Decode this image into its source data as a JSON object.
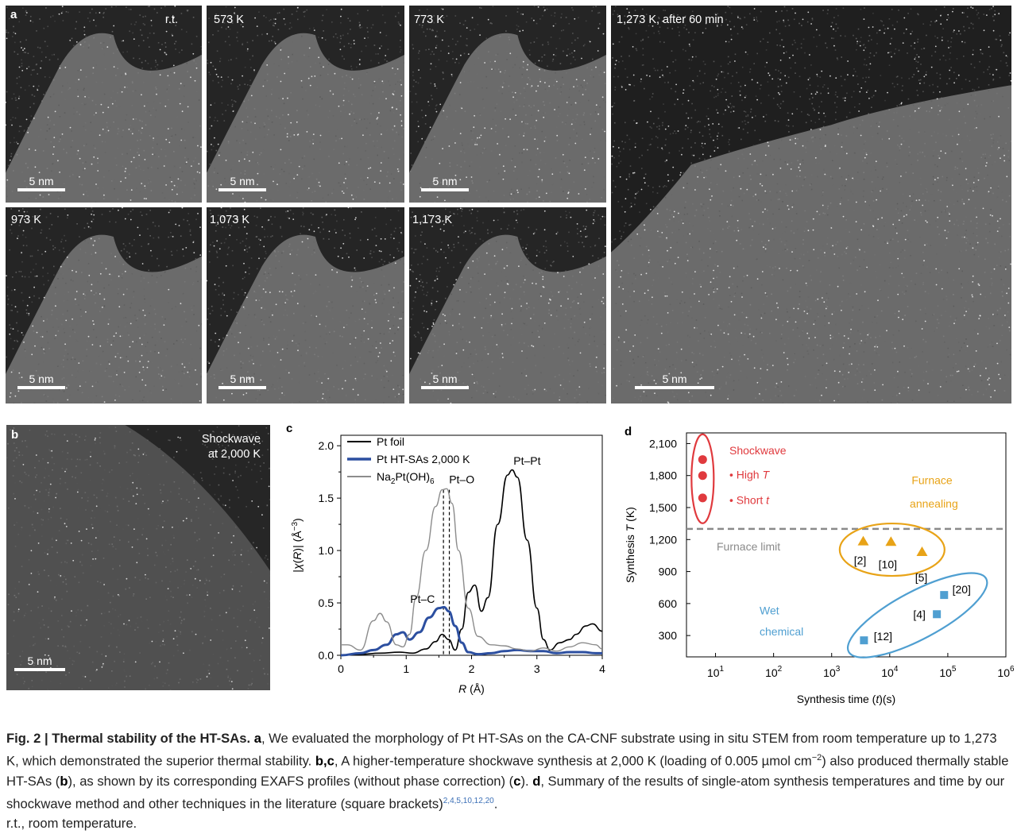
{
  "figure": {
    "panel_a": {
      "letter": "a",
      "images": [
        {
          "label": "r.t.",
          "scale": "5 nm"
        },
        {
          "label": "573 K",
          "scale": "5 nm"
        },
        {
          "label": "773 K",
          "scale": "5 nm"
        },
        {
          "label": "973 K",
          "scale": "5 nm"
        },
        {
          "label": "1,073 K",
          "scale": "5 nm"
        },
        {
          "label": "1,173 K",
          "scale": "5 nm"
        },
        {
          "label": "1,273 K, after 60 min",
          "scale": "5 nm"
        }
      ]
    },
    "panel_b": {
      "letter": "b",
      "label_line1": "Shockwave",
      "label_line2": "at 2,000 K",
      "scale": "5 nm"
    },
    "panel_c": {
      "letter": "c"
    },
    "panel_d": {
      "letter": "d"
    },
    "caption": {
      "title": "Fig. 2 | Thermal stability of the HT-SAs.",
      "a_letter": "a",
      "a_text": ", We evaluated the morphology of Pt HT-SAs on the CA-CNF substrate using in situ STEM from room temperature up to 1,273 K, which demonstrated the superior thermal stability. ",
      "bc_letter": "b,c",
      "bc_text1": ", A higher-temperature shockwave synthesis at 2,000 K (loading of 0.005 µmol cm",
      "bc_sup": "−2",
      "bc_text2": ") also produced thermally stable HT-SAs (",
      "b_ref": "b",
      "bc_text3": "), as shown by its corresponding EXAFS profiles (without phase correction) (",
      "c_ref": "c",
      "bc_text4": "). ",
      "d_letter": "d",
      "d_text": ", Summary of the results of single-atom synthesis temperatures and time by our shockwave method and other techniques in the literature (square brackets)",
      "refs": "2,4,5,10,12,20",
      "end_text": ".",
      "rt_line": "r.t., room temperature."
    }
  },
  "chart_data": [
    {
      "type": "line",
      "title": "",
      "xlabel": "R (Å)",
      "ylabel": "|χ(R)| (Å⁻³)",
      "xlim": [
        0,
        4
      ],
      "ylim": [
        0,
        2.1
      ],
      "xticks": [
        "0",
        "1",
        "2",
        "3",
        "4"
      ],
      "yticks": [
        "0.0",
        "0.5",
        "1.0",
        "1.5",
        "2.0"
      ],
      "legend": {
        "position": "top-left",
        "entries": [
          "Pt foil",
          "Pt HT-SAs 2,000 K",
          "Na2Pt(OH)6"
        ]
      },
      "annotations": [
        "Pt–O",
        "Pt–Pt",
        "Pt–C"
      ],
      "series": [
        {
          "name": "Pt foil",
          "color": "#000000",
          "x": [
            0,
            0.3,
            0.6,
            0.9,
            1.1,
            1.3,
            1.45,
            1.55,
            1.65,
            1.75,
            1.85,
            1.95,
            2.05,
            2.15,
            2.25,
            2.4,
            2.55,
            2.62,
            2.7,
            2.85,
            3.0,
            3.1,
            3.2,
            3.35,
            3.5,
            3.6,
            3.75,
            3.85,
            4.0
          ],
          "y": [
            0.0,
            0.01,
            0.02,
            0.03,
            0.02,
            0.06,
            0.13,
            0.2,
            0.15,
            0.05,
            0.25,
            0.6,
            0.67,
            0.42,
            0.55,
            1.25,
            1.72,
            1.77,
            1.7,
            1.1,
            0.45,
            0.15,
            0.05,
            0.12,
            0.15,
            0.2,
            0.28,
            0.3,
            0.23
          ]
        },
        {
          "name": "Pt HT-SAs 2,000 K",
          "color": "#2c4fa0",
          "x": [
            0,
            0.3,
            0.5,
            0.7,
            0.85,
            0.95,
            1.05,
            1.2,
            1.35,
            1.5,
            1.58,
            1.65,
            1.75,
            1.85,
            1.95,
            2.1,
            2.3,
            2.5,
            2.7,
            2.9,
            3.1,
            3.3,
            3.5,
            3.7,
            3.9,
            4.0
          ],
          "y": [
            0.0,
            0.02,
            0.05,
            0.1,
            0.2,
            0.22,
            0.15,
            0.22,
            0.36,
            0.45,
            0.46,
            0.42,
            0.28,
            0.12,
            0.03,
            0.01,
            0.02,
            0.04,
            0.05,
            0.04,
            0.04,
            0.02,
            0.03,
            0.03,
            0.02,
            0.02
          ]
        },
        {
          "name": "Na2Pt(OH)6",
          "color": "#8c8c8c",
          "x": [
            0,
            0.1,
            0.3,
            0.5,
            0.6,
            0.7,
            0.85,
            0.95,
            1.05,
            1.15,
            1.3,
            1.45,
            1.55,
            1.62,
            1.7,
            1.8,
            1.95,
            2.1,
            2.3,
            2.5,
            2.7,
            2.9,
            3.1,
            3.3,
            3.5,
            3.7,
            3.9,
            4.0
          ],
          "y": [
            0.1,
            0.1,
            0.05,
            0.33,
            0.4,
            0.32,
            0.1,
            0.08,
            0.2,
            0.55,
            1.0,
            1.42,
            1.58,
            1.59,
            1.45,
            1.0,
            0.45,
            0.18,
            0.1,
            0.09,
            0.06,
            0.04,
            0.07,
            0.04,
            0.08,
            0.12,
            0.1,
            0.06
          ]
        }
      ],
      "guides": [
        {
          "x": 1.57,
          "style": "dashed"
        },
        {
          "x": 1.66,
          "style": "dashed"
        }
      ]
    },
    {
      "type": "scatter",
      "title": "",
      "xlabel": "Synthesis time (t)(s)",
      "ylabel": "Synthesis T (K)",
      "xscale": "log",
      "xlim_exp": [
        0.5,
        6
      ],
      "ylim": [
        100,
        2200
      ],
      "xtick_bases": [
        "10",
        "10",
        "10",
        "10",
        "10",
        "10"
      ],
      "xtick_exps": [
        "1",
        "2",
        "3",
        "4",
        "5",
        "6"
      ],
      "yticks": [
        "300",
        "600",
        "900",
        "1,200",
        "1,500",
        "1,800",
        "2,100"
      ],
      "reference_line": {
        "y": 1300,
        "label": "Furnace limit"
      },
      "groups": [
        {
          "name": "Shockwave",
          "notes": [
            "High",
            "Short"
          ],
          "note_vars": [
            "T",
            "t"
          ],
          "color": "#e03a3e",
          "marker": "circle",
          "points": [
            {
              "t": 6,
              "T": 1950
            },
            {
              "t": 6,
              "T": 1800
            },
            {
              "t": 6,
              "T": 1590
            }
          ]
        },
        {
          "name_line1": "Furnace",
          "name_line2": "annealing",
          "color": "#e8a317",
          "marker": "triangle",
          "points": [
            {
              "t": 3500,
              "T": 1190,
              "ref": "[2]"
            },
            {
              "t": 10500,
              "T": 1185,
              "ref": "[10]"
            },
            {
              "t": 36000,
              "T": 1090,
              "ref": "[5]"
            }
          ]
        },
        {
          "name_line1": "Wet",
          "name_line2": "chemical",
          "color": "#4f9fd1",
          "marker": "square",
          "points": [
            {
              "t": 3600,
              "T": 255,
              "ref": "[12]"
            },
            {
              "t": 64800,
              "T": 500,
              "ref": "[4]"
            },
            {
              "t": 86400,
              "T": 680,
              "ref": "[20]"
            }
          ]
        }
      ]
    }
  ]
}
